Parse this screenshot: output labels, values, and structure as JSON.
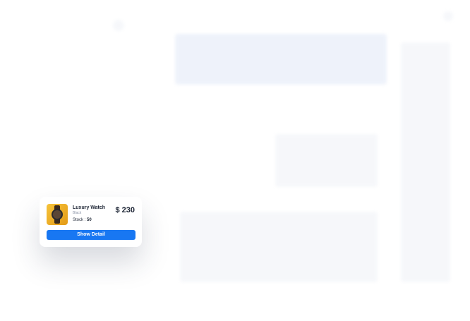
{
  "product": {
    "name": "Luxury Watch",
    "variant": "Black",
    "stock_label": "Stock :",
    "stock_value": 50,
    "price": "$ 230",
    "button": "Show Detail"
  }
}
